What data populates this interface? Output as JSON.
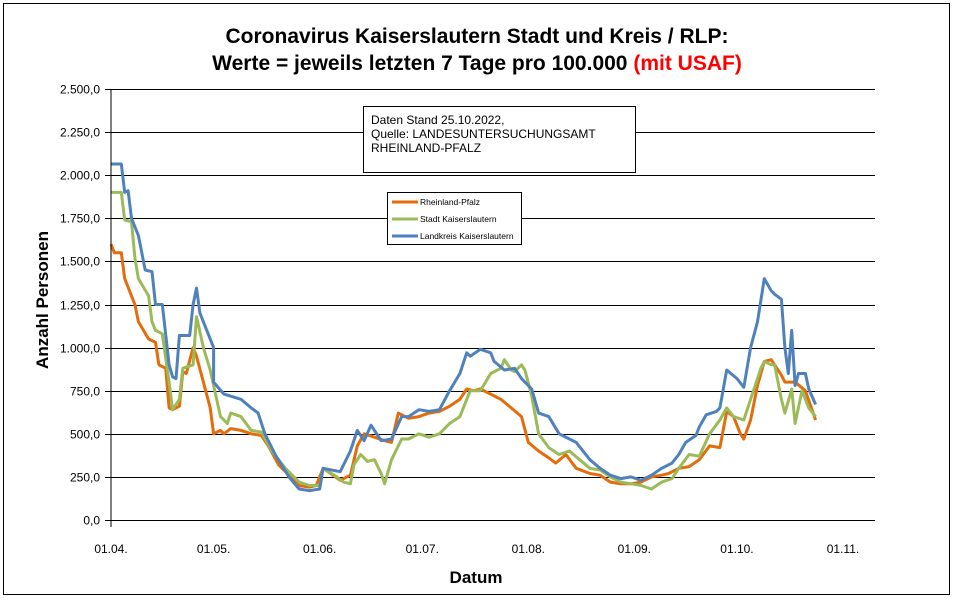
{
  "chart_data": {
    "type": "line",
    "title_line1": "Coronavirus Kaiserslautern Stadt und Kreis / RLP:",
    "title_line2": "Werte = jeweils letzten 7 Tage pro 100.000",
    "title_highlight": "(mit USAF)",
    "xlabel": "Datum",
    "ylabel": "Anzahl Personen",
    "ylim": [
      0,
      2500
    ],
    "yticks": [
      0,
      250,
      500,
      750,
      1000,
      1250,
      1500,
      1750,
      2000,
      2250,
      2500
    ],
    "ytick_labels": [
      "0,0",
      "250,0",
      "500,0",
      "750,0",
      "1.000,0",
      "1.250,0",
      "1.500,0",
      "1.750,0",
      "2.000,0",
      "2.250,0",
      "2.500,0"
    ],
    "x_unit": "days since 01.04.2022",
    "xlim": [
      0,
      214
    ],
    "xticks": [
      0,
      30,
      61,
      91,
      122,
      153,
      183,
      214
    ],
    "xtick_labels": [
      "01.04.",
      "01.05.",
      "01.06.",
      "01.07.",
      "01.08.",
      "01.09.",
      "01.10.",
      "01.11."
    ],
    "grid": "horizontal",
    "annotation": [
      "Daten Stand 25.10.2022,",
      "Quelle: LANDESUNTERSUCHUNGSAMT",
      "RHEINLAND-PFALZ"
    ],
    "legend_position": "top-center",
    "colors": {
      "title_highlight": "#ff0000"
    },
    "series": [
      {
        "name": "Rheinland-Pfalz",
        "color": "#e46c0a",
        "points": [
          [
            0,
            1600
          ],
          [
            1,
            1550
          ],
          [
            3,
            1550
          ],
          [
            4,
            1400
          ],
          [
            6,
            1300
          ],
          [
            7,
            1250
          ],
          [
            8,
            1150
          ],
          [
            11,
            1050
          ],
          [
            13,
            1030
          ],
          [
            14,
            900
          ],
          [
            16,
            880
          ],
          [
            17,
            650
          ],
          [
            18,
            640
          ],
          [
            20,
            660
          ],
          [
            21,
            860
          ],
          [
            22,
            850
          ],
          [
            24,
            1000
          ],
          [
            25,
            950
          ],
          [
            27,
            800
          ],
          [
            29,
            650
          ],
          [
            30,
            500
          ],
          [
            32,
            520
          ],
          [
            33,
            500
          ],
          [
            35,
            530
          ],
          [
            38,
            520
          ],
          [
            41,
            500
          ],
          [
            44,
            490
          ],
          [
            46,
            430
          ],
          [
            49,
            320
          ],
          [
            52,
            260
          ],
          [
            55,
            200
          ],
          [
            58,
            190
          ],
          [
            60,
            200
          ],
          [
            62,
            300
          ],
          [
            67,
            230
          ],
          [
            70,
            260
          ],
          [
            72,
            430
          ],
          [
            74,
            500
          ],
          [
            77,
            480
          ],
          [
            80,
            460
          ],
          [
            82,
            450
          ],
          [
            84,
            620
          ],
          [
            87,
            590
          ],
          [
            90,
            600
          ],
          [
            93,
            620
          ],
          [
            96,
            630
          ],
          [
            99,
            660
          ],
          [
            102,
            700
          ],
          [
            104,
            760
          ],
          [
            106,
            750
          ],
          [
            108,
            760
          ],
          [
            111,
            730
          ],
          [
            114,
            700
          ],
          [
            117,
            650
          ],
          [
            120,
            600
          ],
          [
            122,
            450
          ],
          [
            125,
            400
          ],
          [
            128,
            360
          ],
          [
            130,
            330
          ],
          [
            133,
            380
          ],
          [
            136,
            300
          ],
          [
            140,
            270
          ],
          [
            143,
            260
          ],
          [
            146,
            220
          ],
          [
            149,
            210
          ],
          [
            152,
            210
          ],
          [
            155,
            220
          ],
          [
            158,
            250
          ],
          [
            161,
            260
          ],
          [
            163,
            270
          ],
          [
            166,
            300
          ],
          [
            169,
            310
          ],
          [
            172,
            350
          ],
          [
            175,
            430
          ],
          [
            178,
            420
          ],
          [
            180,
            630
          ],
          [
            182,
            600
          ],
          [
            184,
            500
          ],
          [
            185,
            470
          ],
          [
            187,
            580
          ],
          [
            189,
            780
          ],
          [
            191,
            920
          ],
          [
            193,
            930
          ],
          [
            194,
            900
          ],
          [
            196,
            840
          ],
          [
            197,
            800
          ],
          [
            200,
            800
          ],
          [
            203,
            750
          ],
          [
            206,
            580
          ]
        ]
      },
      {
        "name": "Stadt Kaiserslautern",
        "color": "#9bbb59",
        "points": [
          [
            0,
            1900
          ],
          [
            3,
            1900
          ],
          [
            4,
            1740
          ],
          [
            6,
            1730
          ],
          [
            7,
            1520
          ],
          [
            8,
            1400
          ],
          [
            11,
            1300
          ],
          [
            12,
            1150
          ],
          [
            13,
            1100
          ],
          [
            15,
            1080
          ],
          [
            17,
            800
          ],
          [
            18,
            640
          ],
          [
            20,
            700
          ],
          [
            21,
            880
          ],
          [
            24,
            900
          ],
          [
            25,
            1180
          ],
          [
            27,
            1000
          ],
          [
            29,
            870
          ],
          [
            30,
            780
          ],
          [
            32,
            600
          ],
          [
            34,
            560
          ],
          [
            35,
            620
          ],
          [
            38,
            600
          ],
          [
            41,
            520
          ],
          [
            44,
            510
          ],
          [
            47,
            400
          ],
          [
            51,
            300
          ],
          [
            55,
            220
          ],
          [
            58,
            200
          ],
          [
            61,
            200
          ],
          [
            62,
            300
          ],
          [
            66,
            250
          ],
          [
            68,
            220
          ],
          [
            70,
            210
          ],
          [
            71,
            320
          ],
          [
            73,
            380
          ],
          [
            75,
            340
          ],
          [
            77,
            350
          ],
          [
            79,
            270
          ],
          [
            80,
            210
          ],
          [
            82,
            350
          ],
          [
            85,
            470
          ],
          [
            87,
            470
          ],
          [
            90,
            500
          ],
          [
            93,
            480
          ],
          [
            96,
            500
          ],
          [
            99,
            560
          ],
          [
            102,
            600
          ],
          [
            105,
            750
          ],
          [
            108,
            750
          ],
          [
            111,
            850
          ],
          [
            114,
            880
          ],
          [
            115,
            930
          ],
          [
            117,
            870
          ],
          [
            118,
            860
          ],
          [
            120,
            900
          ],
          [
            121,
            870
          ],
          [
            123,
            720
          ],
          [
            125,
            500
          ],
          [
            128,
            420
          ],
          [
            131,
            380
          ],
          [
            134,
            400
          ],
          [
            137,
            350
          ],
          [
            140,
            300
          ],
          [
            143,
            290
          ],
          [
            146,
            250
          ],
          [
            149,
            220
          ],
          [
            152,
            210
          ],
          [
            155,
            200
          ],
          [
            158,
            180
          ],
          [
            161,
            220
          ],
          [
            164,
            240
          ],
          [
            166,
            300
          ],
          [
            169,
            380
          ],
          [
            172,
            370
          ],
          [
            175,
            500
          ],
          [
            178,
            580
          ],
          [
            180,
            650
          ],
          [
            182,
            600
          ],
          [
            185,
            580
          ],
          [
            187,
            700
          ],
          [
            190,
            880
          ],
          [
            191,
            920
          ],
          [
            193,
            900
          ],
          [
            194,
            900
          ],
          [
            196,
            700
          ],
          [
            197,
            620
          ],
          [
            199,
            760
          ],
          [
            200,
            560
          ],
          [
            202,
            750
          ],
          [
            203,
            700
          ],
          [
            204,
            650
          ],
          [
            206,
            600
          ]
        ]
      },
      {
        "name": "Landkreis Kaiserslautern",
        "color": "#4f81bd",
        "points": [
          [
            0,
            2065
          ],
          [
            3,
            2065
          ],
          [
            4,
            1900
          ],
          [
            5,
            1910
          ],
          [
            6,
            1750
          ],
          [
            8,
            1650
          ],
          [
            10,
            1450
          ],
          [
            12,
            1440
          ],
          [
            13,
            1250
          ],
          [
            15,
            1250
          ],
          [
            17,
            900
          ],
          [
            18,
            830
          ],
          [
            19,
            820
          ],
          [
            20,
            1070
          ],
          [
            23,
            1070
          ],
          [
            24,
            1250
          ],
          [
            25,
            1345
          ],
          [
            26,
            1200
          ],
          [
            28,
            1100
          ],
          [
            30,
            1000
          ],
          [
            30,
            800
          ],
          [
            33,
            730
          ],
          [
            38,
            700
          ],
          [
            41,
            650
          ],
          [
            43,
            620
          ],
          [
            45,
            500
          ],
          [
            48,
            380
          ],
          [
            52,
            250
          ],
          [
            55,
            180
          ],
          [
            58,
            170
          ],
          [
            61,
            180
          ],
          [
            62,
            300
          ],
          [
            67,
            280
          ],
          [
            70,
            400
          ],
          [
            72,
            520
          ],
          [
            74,
            460
          ],
          [
            76,
            550
          ],
          [
            79,
            460
          ],
          [
            82,
            470
          ],
          [
            85,
            600
          ],
          [
            87,
            600
          ],
          [
            90,
            640
          ],
          [
            93,
            630
          ],
          [
            96,
            640
          ],
          [
            99,
            750
          ],
          [
            102,
            850
          ],
          [
            104,
            970
          ],
          [
            105,
            950
          ],
          [
            108,
            990
          ],
          [
            111,
            970
          ],
          [
            112,
            920
          ],
          [
            115,
            870
          ],
          [
            118,
            880
          ],
          [
            120,
            820
          ],
          [
            123,
            760
          ],
          [
            125,
            620
          ],
          [
            128,
            600
          ],
          [
            131,
            500
          ],
          [
            136,
            450
          ],
          [
            140,
            350
          ],
          [
            143,
            300
          ],
          [
            146,
            260
          ],
          [
            149,
            240
          ],
          [
            152,
            250
          ],
          [
            155,
            230
          ],
          [
            158,
            260
          ],
          [
            161,
            300
          ],
          [
            164,
            330
          ],
          [
            166,
            380
          ],
          [
            168,
            450
          ],
          [
            171,
            490
          ],
          [
            172,
            540
          ],
          [
            174,
            610
          ],
          [
            177,
            630
          ],
          [
            178,
            650
          ],
          [
            180,
            870
          ],
          [
            183,
            820
          ],
          [
            185,
            770
          ],
          [
            187,
            1000
          ],
          [
            189,
            1150
          ],
          [
            191,
            1400
          ],
          [
            193,
            1330
          ],
          [
            194,
            1310
          ],
          [
            196,
            1280
          ],
          [
            197,
            1000
          ],
          [
            198,
            850
          ],
          [
            199,
            1100
          ],
          [
            200,
            780
          ],
          [
            201,
            850
          ],
          [
            203,
            850
          ],
          [
            204,
            760
          ],
          [
            206,
            670
          ]
        ]
      }
    ]
  }
}
